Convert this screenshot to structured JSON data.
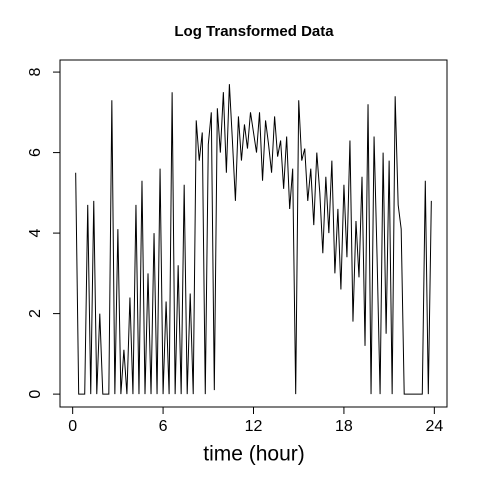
{
  "chart_data": {
    "type": "line",
    "title": "Log Transformed Data",
    "x_label": "time (hour)",
    "x": [
      0.2,
      0.4,
      0.6,
      0.8,
      1.0,
      1.2,
      1.4,
      1.6,
      1.8,
      2.0,
      2.2,
      2.4,
      2.6,
      2.8,
      3.0,
      3.2,
      3.4,
      3.6,
      3.8,
      4.0,
      4.2,
      4.4,
      4.6,
      4.8,
      5.0,
      5.2,
      5.4,
      5.6,
      5.8,
      6.0,
      6.2,
      6.4,
      6.6,
      6.8,
      7.0,
      7.2,
      7.4,
      7.6,
      7.8,
      8.0,
      8.2,
      8.4,
      8.6,
      8.8,
      9.0,
      9.2,
      9.4,
      9.6,
      9.8,
      10.0,
      10.2,
      10.4,
      10.6,
      10.8,
      11.0,
      11.2,
      11.4,
      11.6,
      11.8,
      12.0,
      12.2,
      12.4,
      12.6,
      12.8,
      13.0,
      13.2,
      13.4,
      13.6,
      13.8,
      14.0,
      14.2,
      14.4,
      14.6,
      14.8,
      15.0,
      15.2,
      15.4,
      15.6,
      15.8,
      16.0,
      16.2,
      16.4,
      16.6,
      16.8,
      17.0,
      17.2,
      17.4,
      17.6,
      17.8,
      18.0,
      18.2,
      18.4,
      18.6,
      18.8,
      19.0,
      19.2,
      19.4,
      19.6,
      19.8,
      20.0,
      20.2,
      20.4,
      20.6,
      20.8,
      21.0,
      21.2,
      21.4,
      21.6,
      21.8,
      22.0,
      22.2,
      22.4,
      22.6,
      22.8,
      23.0,
      23.2,
      23.4,
      23.6,
      23.8
    ],
    "series": [
      {
        "color": "#000000",
        "values": [
          5.5,
          0,
          0,
          0,
          4.7,
          0,
          4.8,
          0,
          2.0,
          0,
          0,
          0,
          7.3,
          0,
          4.1,
          0,
          1.1,
          0,
          2.4,
          0,
          4.7,
          0,
          5.3,
          0,
          3.0,
          0,
          4.0,
          0,
          5.6,
          0,
          2.3,
          0,
          7.5,
          0,
          3.2,
          0,
          5.2,
          0,
          2.5,
          0,
          6.8,
          5.8,
          6.5,
          0,
          6.2,
          7.0,
          0.1,
          7.1,
          6.0,
          7.5,
          5.5,
          7.7,
          6.3,
          4.8,
          6.9,
          5.8,
          6.7,
          6.1,
          7.0,
          6.5,
          6.0,
          7.0,
          5.3,
          6.8,
          6.2,
          5.5,
          6.9,
          5.9,
          6.3,
          5.1,
          6.4,
          4.6,
          5.6,
          0,
          7.3,
          5.8,
          6.1,
          4.8,
          5.6,
          4.2,
          6.0,
          5.0,
          3.5,
          5.4,
          4.0,
          5.8,
          3.0,
          4.6,
          2.6,
          5.2,
          3.4,
          6.3,
          1.8,
          4.3,
          2.9,
          5.4,
          1.2,
          7.2,
          0,
          6.4,
          3.4,
          0,
          6.0,
          1.5,
          5.8,
          0,
          7.4,
          4.7,
          4.1,
          0,
          0,
          0,
          0,
          0,
          0,
          0,
          5.3,
          0,
          4.8
        ]
      }
    ],
    "xlim": [
      -0.84,
      24.84
    ],
    "ylim": [
      -0.32,
      8.3
    ],
    "xticks": [
      0,
      6,
      12,
      18,
      24
    ],
    "yticks": [
      0,
      2,
      4,
      6,
      8
    ]
  }
}
